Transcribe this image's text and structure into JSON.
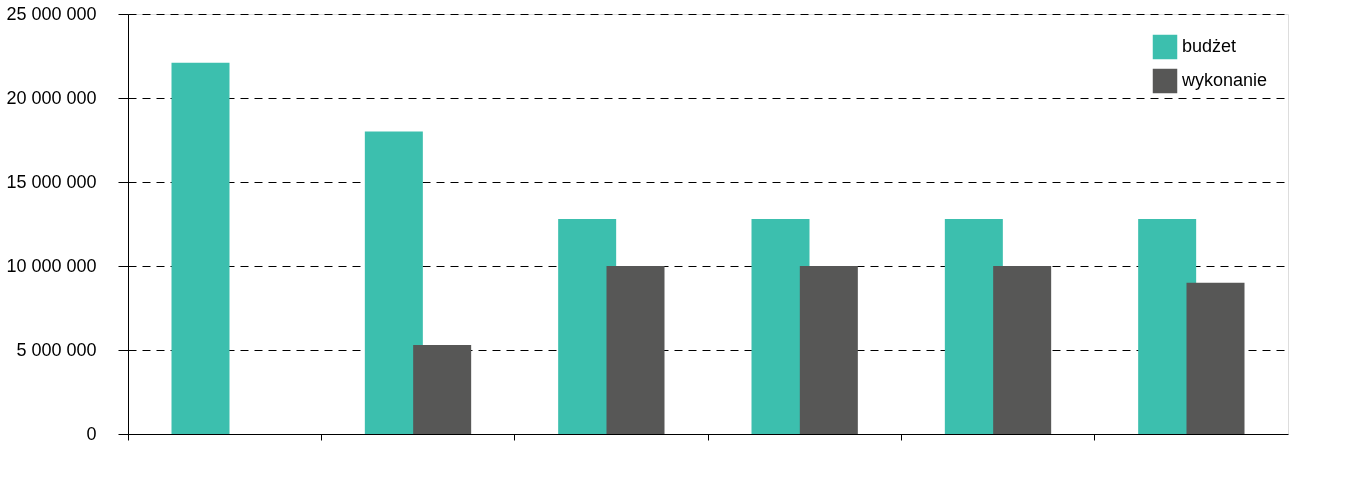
{
  "chart_data": {
    "type": "bar",
    "categories": [
      null,
      null,
      null,
      null,
      null,
      null
    ],
    "series": [
      {
        "name": "budżet",
        "color": "#3cbfae",
        "values": [
          22100000,
          18000000,
          12800000,
          12800000,
          12800000,
          12800000
        ]
      },
      {
        "name": "wykonanie",
        "color": "#575756",
        "values": [
          null,
          5300000,
          10000000,
          10000000,
          10000000,
          9000000
        ]
      }
    ],
    "ylim": [
      0,
      25000000
    ],
    "yticks": [
      {
        "value": 0,
        "label": "0"
      },
      {
        "value": 5000000,
        "label": "5 000 000"
      },
      {
        "value": 10000000,
        "label": "10 000 000"
      },
      {
        "value": 15000000,
        "label": "15 000 000"
      },
      {
        "value": 20000000,
        "label": "20 000 000"
      },
      {
        "value": 25000000,
        "label": "25 000 000"
      }
    ],
    "grid": "y",
    "line_style": "dashed",
    "legend": "top right",
    "tick_labels": "y"
  }
}
